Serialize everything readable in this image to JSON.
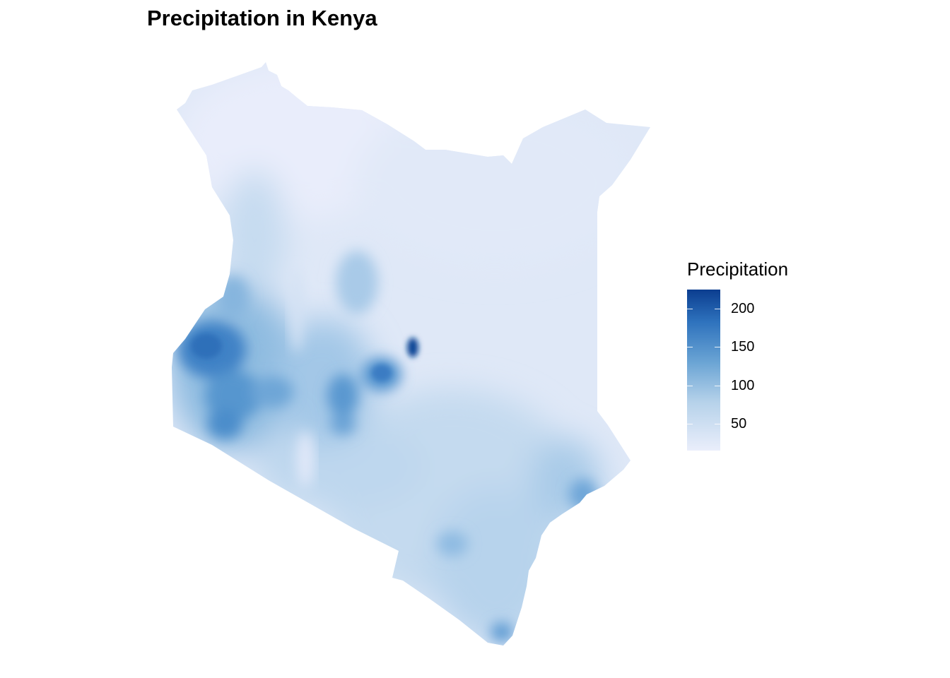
{
  "title": "Precipitation in Kenya",
  "legend": {
    "title": "Precipitation",
    "min": 15,
    "max": 225,
    "breaks": [
      {
        "value": 200,
        "label": "200"
      },
      {
        "value": 150,
        "label": "150"
      },
      {
        "value": 100,
        "label": "100"
      },
      {
        "value": 50,
        "label": "50"
      }
    ],
    "color_low": "#eaeefb",
    "color_high": "#0b3d8f"
  },
  "map": {
    "region": "Kenya",
    "colors": {
      "dry": "#e6ebf8",
      "base": "#dce8f6",
      "wet_light": "#a9cbe6",
      "wet_mid": "#6fa6d6",
      "wet_high": "#2f74be",
      "wet_peak": "#0e4796"
    }
  }
}
